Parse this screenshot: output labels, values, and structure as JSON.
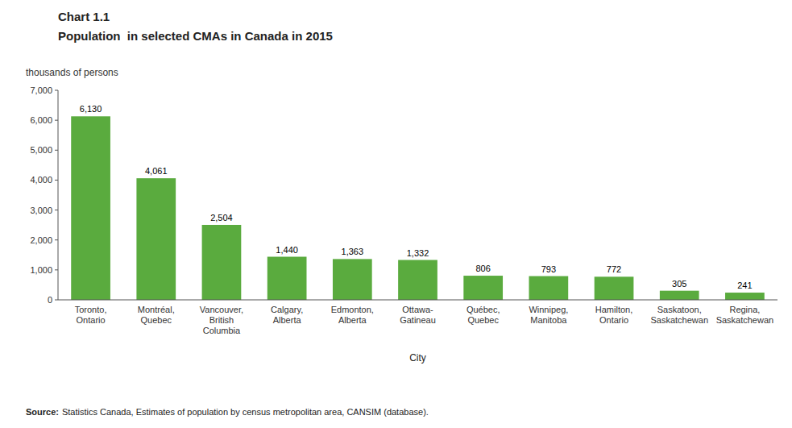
{
  "chart_data": {
    "type": "bar",
    "title": "Chart 1.1",
    "subtitle": "Population  in selected CMAs in Canada in 2015",
    "y_label": "thousands of persons",
    "x_label": "City",
    "categories": [
      "Toronto,\nOntario",
      "Montréal,\nQuebec",
      "Vancouver,\nBritish\nColumbia",
      "Calgary,\nAlberta",
      "Edmonton,\nAlberta",
      "Ottawa-\nGatineau",
      "Québec,\nQuebec",
      "Winnipeg,\nManitoba",
      "Hamilton,\nOntario",
      "Saskatoon,\nSaskatchewan",
      "Regina,\nSaskatchewan"
    ],
    "values": [
      6130,
      4061,
      2504,
      1440,
      1363,
      1332,
      806,
      793,
      772,
      305,
      241
    ],
    "value_labels": [
      "6,130",
      "4,061",
      "2,504",
      "1,440",
      "1,363",
      "1,332",
      "806",
      "793",
      "772",
      "305",
      "241"
    ],
    "data_labels": true,
    "color": "#5aab3e",
    "ylim": [
      0,
      7000
    ],
    "yticks": [
      0,
      {
        "value": 1000,
        "label": "1,000"
      },
      {
        "value": 2000,
        "label": "2,000"
      },
      {
        "value": 3000,
        "label": "3,000"
      },
      {
        "value": 4000,
        "label": "4,000"
      },
      {
        "value": 5000,
        "label": "5,000"
      },
      {
        "value": 6000,
        "label": "6,000"
      },
      {
        "value": 7000,
        "label": "7,000"
      }
    ],
    "grid": false,
    "source_label": "Source:",
    "source": "Statistics Canada, Estimates of population by census metropolitan area, CANSIM (database)."
  }
}
